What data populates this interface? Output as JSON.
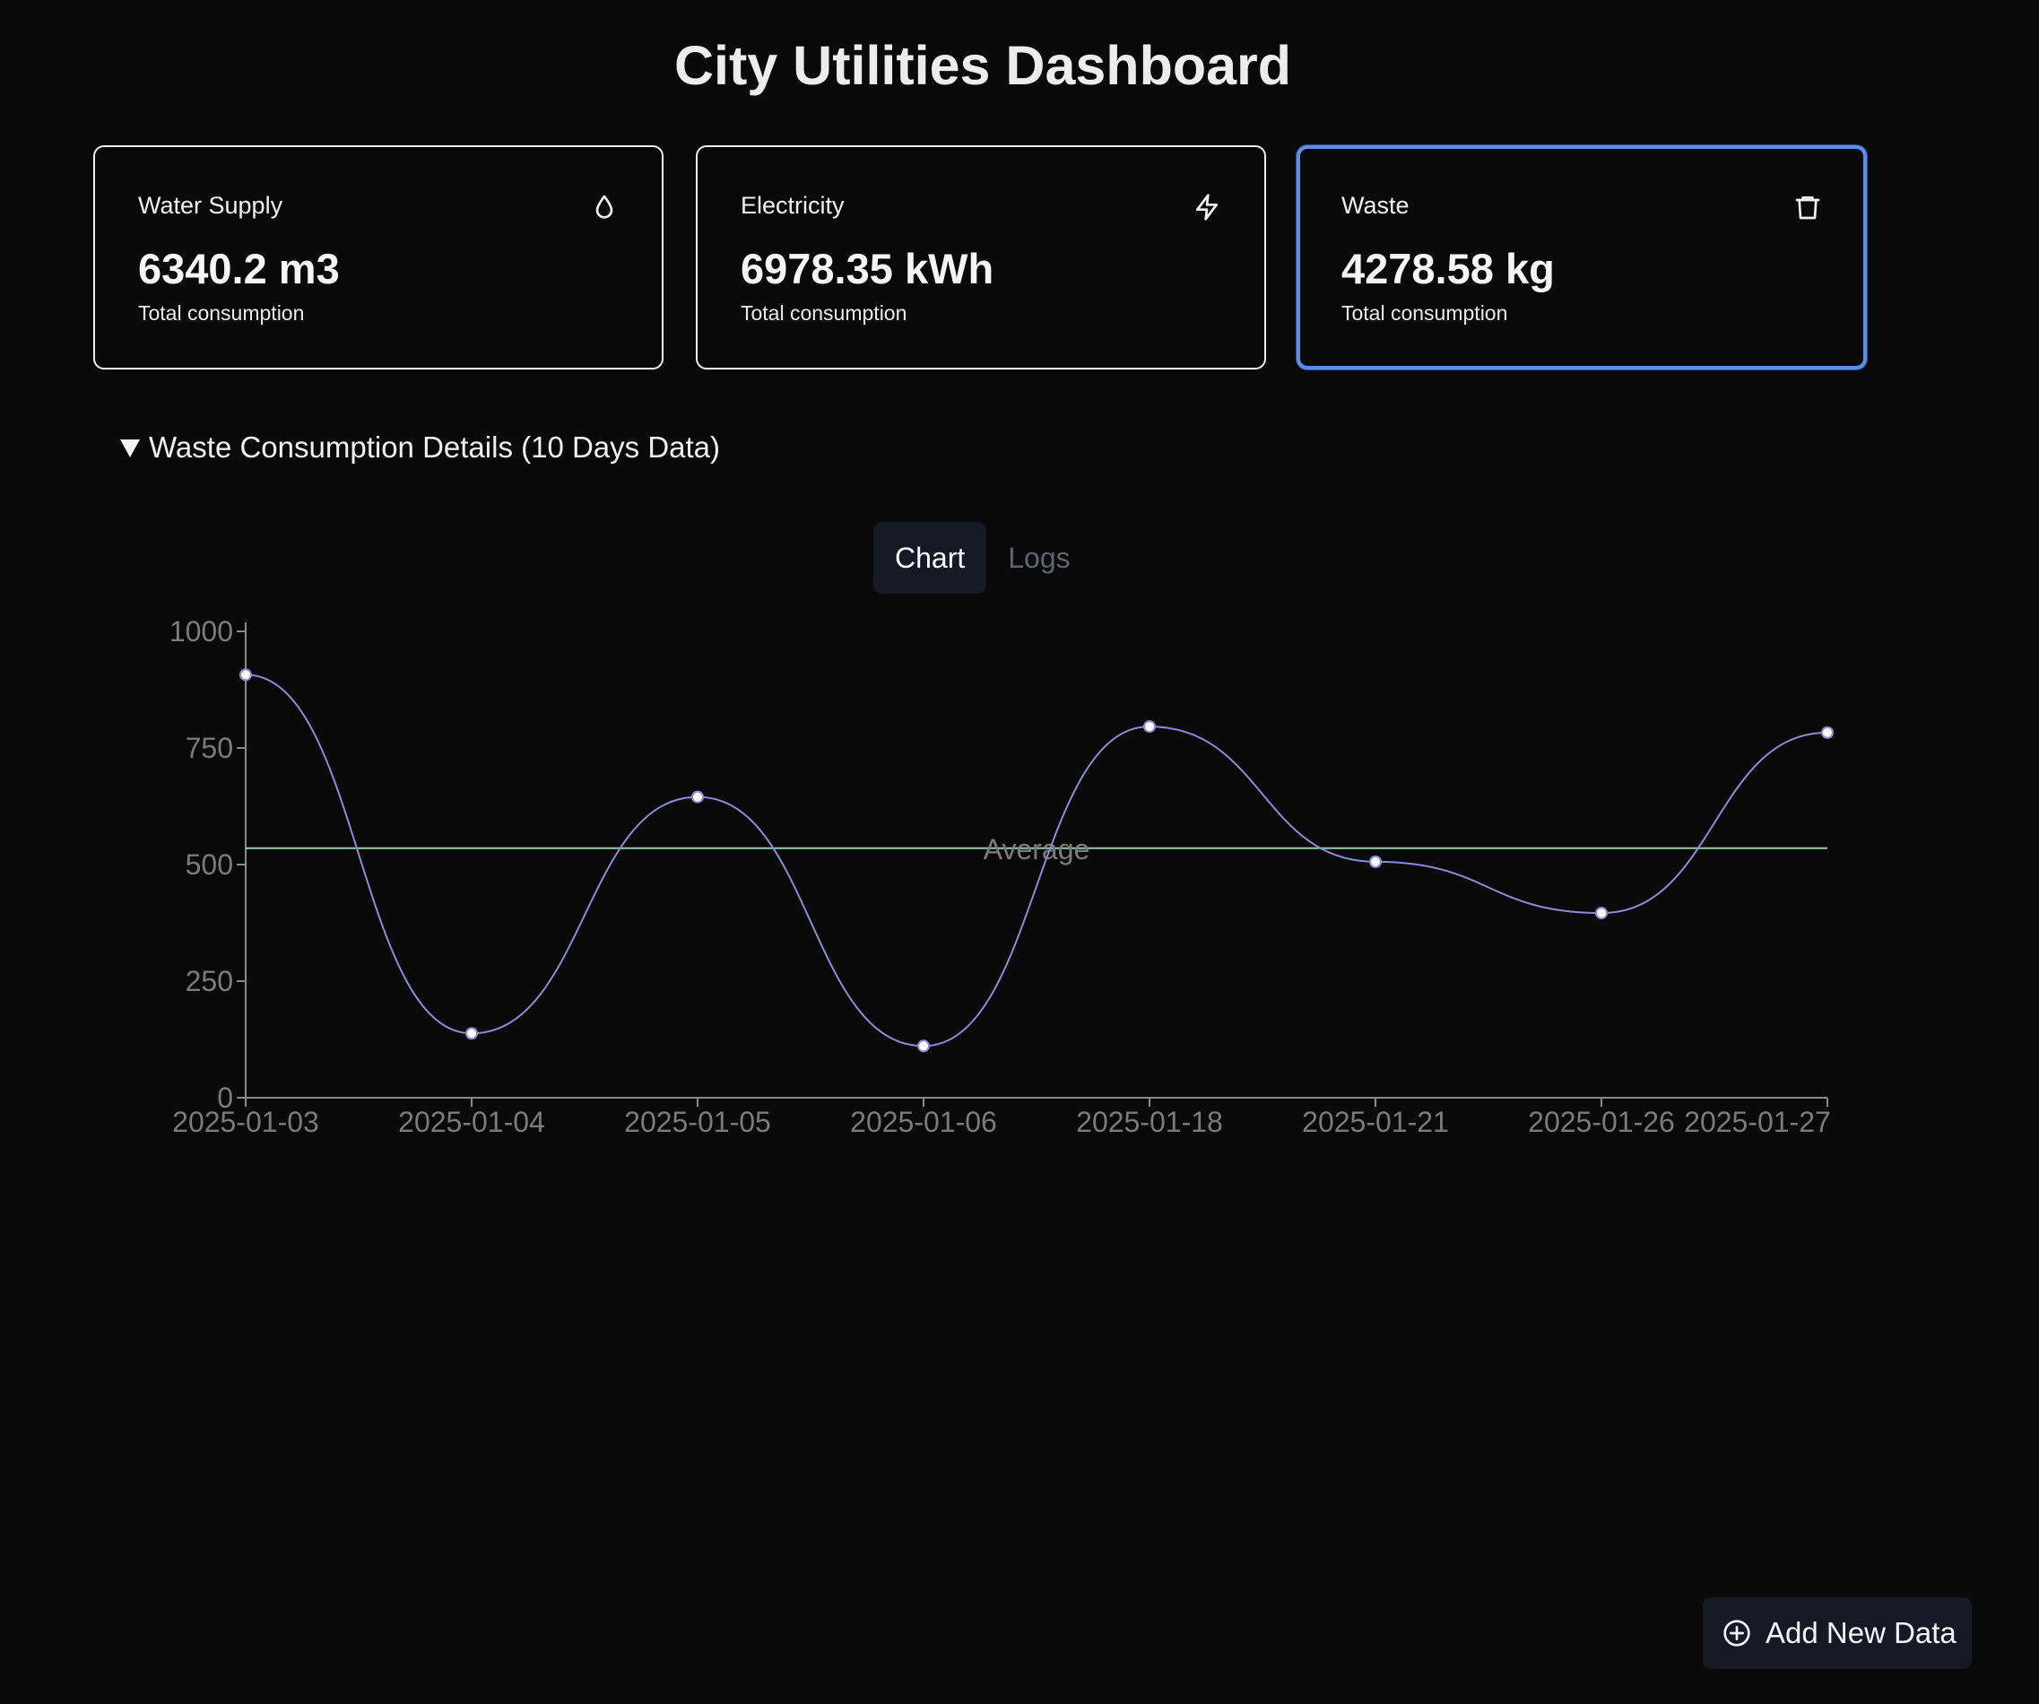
{
  "header": {
    "title": "City Utilities Dashboard"
  },
  "cards": [
    {
      "label": "Water Supply",
      "value": "6340.2 m3",
      "subtitle": "Total consumption",
      "icon": "droplet-icon"
    },
    {
      "label": "Electricity",
      "value": "6978.35 kWh",
      "subtitle": "Total consumption",
      "icon": "lightning-icon"
    },
    {
      "label": "Waste",
      "value": "4278.58 kg",
      "subtitle": "Total consumption",
      "icon": "trash-icon",
      "selected": true
    }
  ],
  "details": {
    "summary": "Waste Consumption Details (10 Days Data)",
    "expanded": true
  },
  "tabs": [
    {
      "label": "Chart",
      "active": true
    },
    {
      "label": "Logs",
      "active": false
    }
  ],
  "chart_data": {
    "type": "line",
    "x": [
      "2025-01-03",
      "2025-01-04",
      "2025-01-05",
      "2025-01-06",
      "2025-01-18",
      "2025-01-21",
      "2025-01-26",
      "2025-01-27"
    ],
    "series": [
      {
        "values": [
          907,
          138,
          645,
          111,
          796,
          506,
          396,
          783
        ],
        "color": "#8f8ad6"
      }
    ],
    "reference_line": {
      "label": "Average",
      "value": 535,
      "color": "#9dcca6"
    },
    "yticks": [
      0,
      250,
      500,
      750,
      1000
    ],
    "ylim": [
      0,
      1000
    ],
    "grid": false
  },
  "actions": {
    "add_label": "Add New Data",
    "icon": "plus-circle-icon"
  },
  "colors": {
    "background": "#0a0a0b",
    "accent": "#5b8fe8",
    "button_bg": "#151a26"
  }
}
